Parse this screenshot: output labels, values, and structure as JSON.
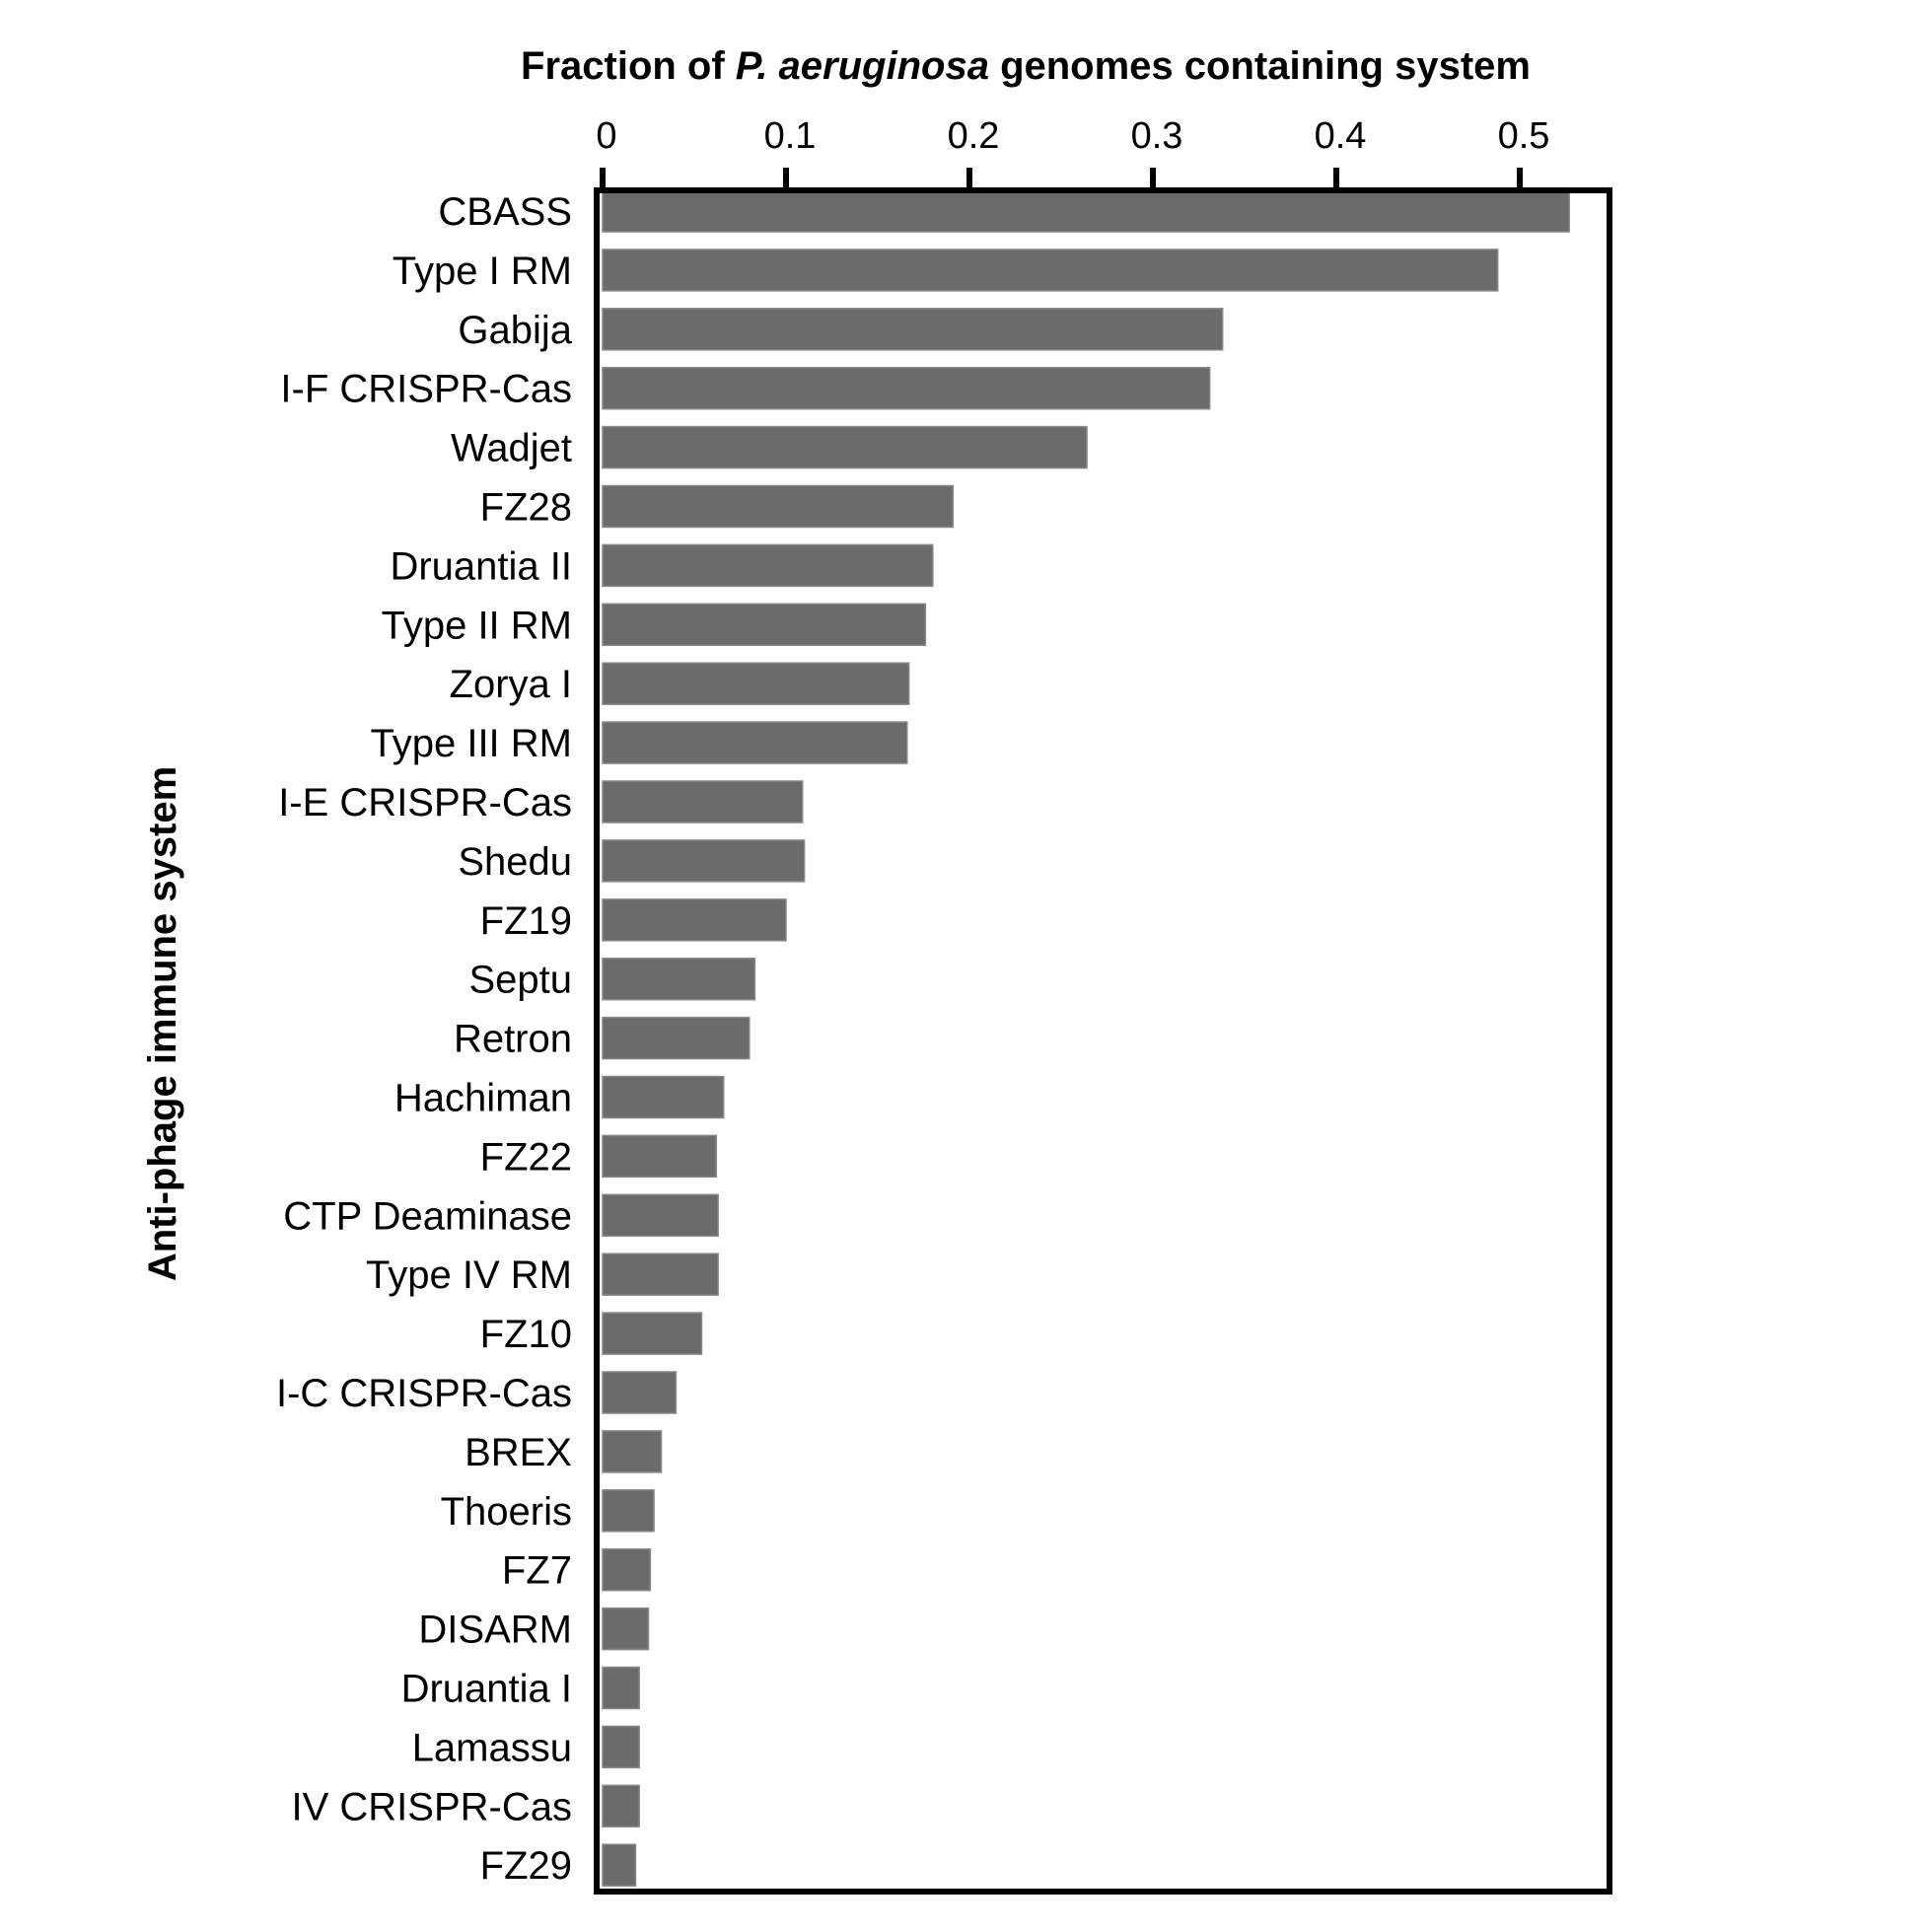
{
  "chart_data": {
    "type": "bar",
    "orientation": "horizontal",
    "title_parts": [
      {
        "text": "Fraction of ",
        "italic": false
      },
      {
        "text": "P. aeruginosa",
        "italic": true
      },
      {
        "text": " genomes containing system",
        "italic": false
      }
    ],
    "xlabel": "Fraction of P. aeruginosa genomes containing system",
    "ylabel": "Anti-phage immune system",
    "xaxis_position": "top",
    "xlim": [
      0,
      0.55
    ],
    "xticks": [
      0,
      0.1,
      0.2,
      0.3,
      0.4,
      0.5
    ],
    "xtick_labels": [
      "0",
      "0.1",
      "0.2",
      "0.3",
      "0.4",
      "0.5"
    ],
    "grid": false,
    "bar_color": "#6b6b6b",
    "categories": [
      "CBASS",
      "Type I RM",
      "Gabija",
      "I-F CRISPR-Cas",
      "Wadjet",
      "FZ28",
      "Druantia II",
      "Type II RM",
      "Zorya I",
      "Type III RM",
      "I-E CRISPR-Cas",
      "Shedu",
      "FZ19",
      "Septu",
      "Retron",
      "Hachiman",
      "FZ22",
      "CTP Deaminase",
      "Type IV RM",
      "FZ10",
      "I-C CRISPR-Cas",
      "BREX",
      "Thoeris",
      "FZ7",
      "DISARM",
      "Druantia I",
      "Lamassu",
      "IV CRISPR-Cas",
      "FZ29"
    ],
    "values": [
      0.527,
      0.488,
      0.338,
      0.331,
      0.264,
      0.191,
      0.18,
      0.176,
      0.167,
      0.166,
      0.109,
      0.11,
      0.1,
      0.083,
      0.08,
      0.066,
      0.062,
      0.063,
      0.063,
      0.054,
      0.04,
      0.032,
      0.028,
      0.026,
      0.025,
      0.02,
      0.02,
      0.02,
      0.018
    ]
  }
}
